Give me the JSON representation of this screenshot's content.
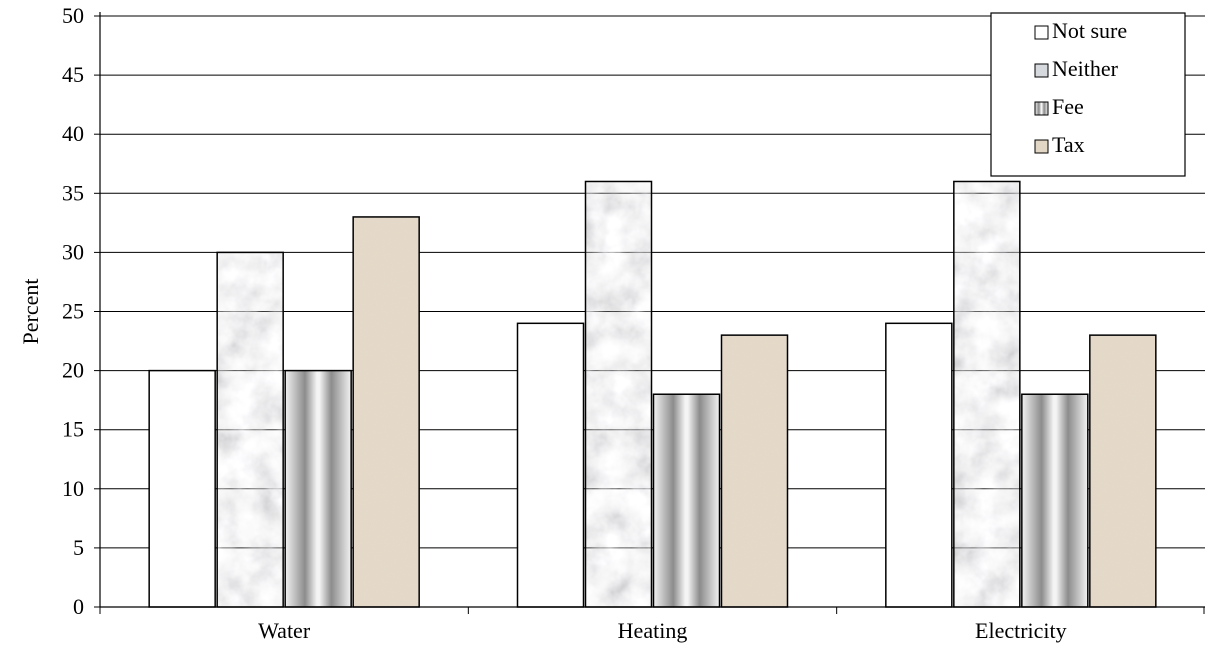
{
  "chart_data": {
    "type": "bar",
    "title": "",
    "xlabel": "",
    "ylabel": "Percent",
    "ylim": [
      0,
      50
    ],
    "yticks": [
      0,
      5,
      10,
      15,
      20,
      25,
      30,
      35,
      40,
      45,
      50
    ],
    "grid": true,
    "legend_position": "top-right",
    "categories": [
      "Water",
      "Heating",
      "Electricity"
    ],
    "series": [
      {
        "name": "Not sure",
        "values": [
          20,
          24,
          24
        ],
        "fill": "#ffffff"
      },
      {
        "name": "Neither",
        "values": [
          30,
          36,
          36
        ],
        "fill": "marble"
      },
      {
        "name": "Fee",
        "values": [
          20,
          18,
          18
        ],
        "fill": "gray-gradient"
      },
      {
        "name": "Tax",
        "values": [
          33,
          23,
          23
        ],
        "fill": "#e2d6c4"
      }
    ]
  }
}
